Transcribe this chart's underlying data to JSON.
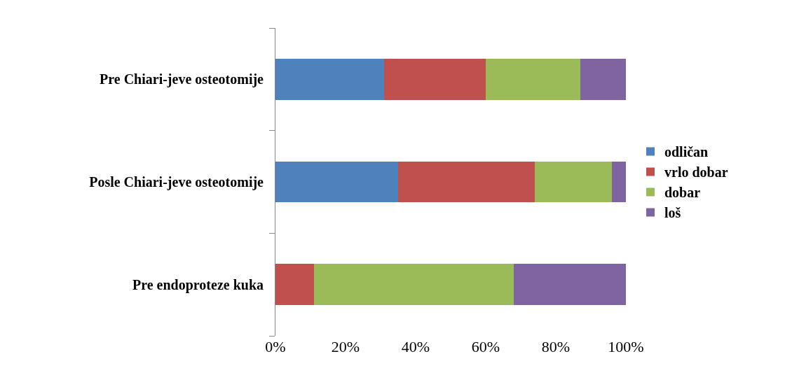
{
  "chart_data": {
    "type": "bar",
    "orientation": "horizontal",
    "stacked": true,
    "categories": [
      "Pre Chiari-jeve osteotomije",
      "Posle Chiari-jeve osteotomije",
      "Pre endoproteze kuka"
    ],
    "series": [
      {
        "name": "odličan",
        "color": "#4f81bd",
        "values": [
          31,
          35,
          0
        ]
      },
      {
        "name": "vrlo dobar",
        "color": "#c0504d",
        "values": [
          29,
          39,
          11
        ]
      },
      {
        "name": "dobar",
        "color": "#9bbb59",
        "values": [
          27,
          22,
          57
        ]
      },
      {
        "name": "loš",
        "color": "#8064a2",
        "values": [
          13,
          4,
          32
        ]
      }
    ],
    "xlim": [
      0,
      100
    ],
    "xticks": [
      {
        "value": 0,
        "label": "0%"
      },
      {
        "value": 20,
        "label": "20%"
      },
      {
        "value": 40,
        "label": "40%"
      },
      {
        "value": 60,
        "label": "60%"
      },
      {
        "value": 80,
        "label": "80%"
      },
      {
        "value": 100,
        "label": "100%"
      }
    ],
    "legend": "right"
  }
}
